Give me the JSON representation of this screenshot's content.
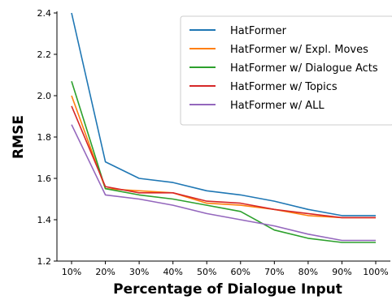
{
  "chart_data": {
    "type": "line",
    "xlabel": "Percentage of Dialogue Input",
    "ylabel": "RMSE",
    "categories": [
      "10%",
      "20%",
      "30%",
      "40%",
      "50%",
      "60%",
      "70%",
      "80%",
      "90%",
      "100%"
    ],
    "ylim": [
      1.2,
      2.4
    ],
    "yticks": [
      "1.2",
      "1.4",
      "1.6",
      "1.8",
      "2.0",
      "2.2",
      "2.4"
    ],
    "grid": false,
    "legend_position": "top-right",
    "series": [
      {
        "name": "HatFormer",
        "color": "#1f77b4",
        "values": [
          2.4,
          1.68,
          1.6,
          1.58,
          1.54,
          1.52,
          1.49,
          1.45,
          1.42,
          1.42
        ]
      },
      {
        "name": "HatFormer w/ Expl. Moves",
        "color": "#ff7f0e",
        "values": [
          2.0,
          1.55,
          1.54,
          1.53,
          1.48,
          1.47,
          1.45,
          1.42,
          1.41,
          1.41
        ]
      },
      {
        "name": "HatFormer w/ Dialogue Acts",
        "color": "#2ca02c",
        "values": [
          2.07,
          1.55,
          1.52,
          1.5,
          1.47,
          1.44,
          1.35,
          1.31,
          1.29,
          1.29
        ]
      },
      {
        "name": "HatFormer w/ Topics",
        "color": "#d62728",
        "values": [
          1.95,
          1.56,
          1.53,
          1.53,
          1.49,
          1.48,
          1.45,
          1.43,
          1.41,
          1.41
        ]
      },
      {
        "name": "HatFormer w/ ALL",
        "color": "#9467bd",
        "values": [
          1.86,
          1.52,
          1.5,
          1.47,
          1.43,
          1.4,
          1.37,
          1.33,
          1.3,
          1.3
        ]
      }
    ]
  }
}
